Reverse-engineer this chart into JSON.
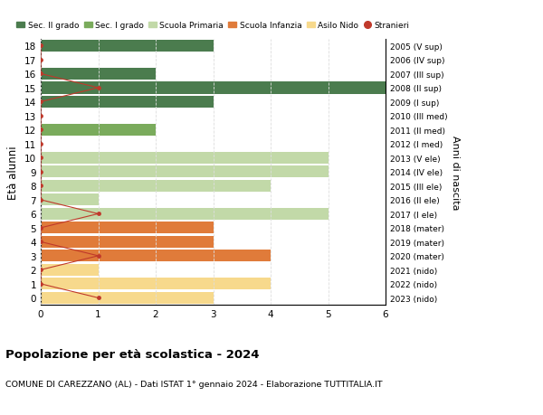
{
  "ages": [
    18,
    17,
    16,
    15,
    14,
    13,
    12,
    11,
    10,
    9,
    8,
    7,
    6,
    5,
    4,
    3,
    2,
    1,
    0
  ],
  "right_labels": [
    "2005 (V sup)",
    "2006 (IV sup)",
    "2007 (III sup)",
    "2008 (II sup)",
    "2009 (I sup)",
    "2010 (III med)",
    "2011 (II med)",
    "2012 (I med)",
    "2013 (V ele)",
    "2014 (IV ele)",
    "2015 (III ele)",
    "2016 (II ele)",
    "2017 (I ele)",
    "2018 (mater)",
    "2019 (mater)",
    "2020 (mater)",
    "2021 (nido)",
    "2022 (nido)",
    "2023 (nido)"
  ],
  "bar_values": [
    3,
    0,
    2,
    6,
    3,
    0,
    2,
    0,
    5,
    5,
    4,
    1,
    5,
    3,
    3,
    4,
    1,
    4,
    3
  ],
  "bar_colors": [
    "#4b7c4e",
    "#4b7c4e",
    "#4b7c4e",
    "#4b7c4e",
    "#4b7c4e",
    "#7aab5c",
    "#7aab5c",
    "#7aab5c",
    "#c2d9a8",
    "#c2d9a8",
    "#c2d9a8",
    "#c2d9a8",
    "#c2d9a8",
    "#e07b3a",
    "#e07b3a",
    "#e07b3a",
    "#f7d98c",
    "#f7d98c",
    "#f7d98c"
  ],
  "stranieri_x": [
    0,
    0,
    0,
    1,
    0,
    0,
    0,
    0,
    0,
    0,
    0,
    0,
    1,
    0,
    0,
    1,
    0,
    0,
    1
  ],
  "title": "Popolazione per età scolastica - 2024",
  "subtitle": "COMUNE DI CAREZZANO (AL) - Dati ISTAT 1° gennaio 2024 - Elaborazione TUTTITALIA.IT",
  "ylabel": "Età alunni",
  "right_ylabel": "Anni di nascita",
  "xlim": [
    0,
    6
  ],
  "legend_labels": [
    "Sec. II grado",
    "Sec. I grado",
    "Scuola Primaria",
    "Scuola Infanzia",
    "Asilo Nido",
    "Stranieri"
  ],
  "legend_colors": [
    "#4b7c4e",
    "#7aab5c",
    "#c2d9a8",
    "#e07b3a",
    "#f7d98c",
    "#c0392b"
  ],
  "color_stranieri": "#c0392b",
  "bg_color": "#ffffff",
  "grid_color": "#dddddd",
  "bar_height": 0.85
}
